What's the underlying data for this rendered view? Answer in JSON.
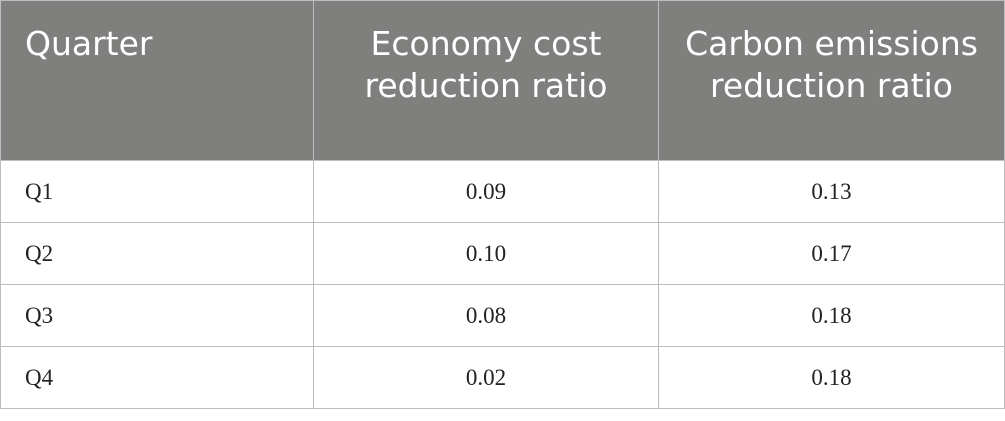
{
  "table": {
    "header": [
      "Quarter",
      "Economy cost reduction ratio",
      "Carbon emissions reduction ratio"
    ],
    "rows": [
      [
        "Q1",
        "0.09",
        "0.13"
      ],
      [
        "Q2",
        "0.10",
        "0.17"
      ],
      [
        "Q3",
        "0.08",
        "0.18"
      ],
      [
        "Q4",
        "0.02",
        "0.18"
      ]
    ]
  }
}
